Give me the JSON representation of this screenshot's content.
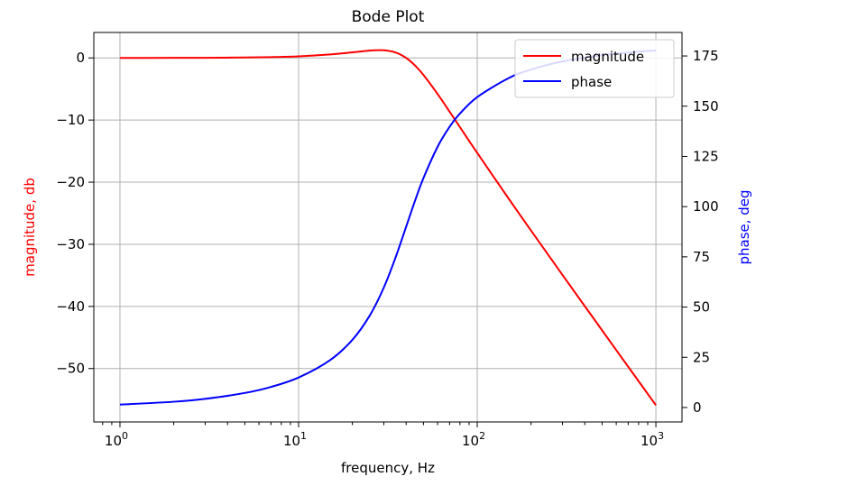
{
  "chart_data": {
    "type": "line",
    "title": "Bode Plot",
    "xlabel": "frequency, Hz",
    "ylabel_left": "magnitude, db",
    "ylabel_right": "phase, deg",
    "x_scale": "log",
    "xlim": [
      0.714,
      1400
    ],
    "ylim_left": [
      -58.6,
      4.1
    ],
    "ylim_right": [
      -7.2,
      186.7
    ],
    "x_ticks": [
      {
        "value": 1,
        "base": "10",
        "exp": "0"
      },
      {
        "value": 10,
        "base": "10",
        "exp": "1"
      },
      {
        "value": 100,
        "base": "10",
        "exp": "2"
      },
      {
        "value": 1000,
        "base": "10",
        "exp": "3"
      }
    ],
    "y_ticks_left": [
      0,
      -10,
      -20,
      -30,
      -40,
      -50
    ],
    "y_ticks_right": [
      0,
      25,
      50,
      75,
      100,
      125,
      150,
      175
    ],
    "grid": true,
    "legend_position": "top-right",
    "x": [
      1,
      2,
      3,
      5,
      7,
      10,
      15,
      20,
      25,
      30,
      35,
      40,
      45,
      50,
      60,
      70,
      80,
      100,
      150,
      200,
      300,
      500,
      700,
      1000
    ],
    "series": [
      {
        "name": "magnitude",
        "axis": "left",
        "color": "#ff0000",
        "values": [
          0.0,
          0.01,
          0.02,
          0.07,
          0.13,
          0.26,
          0.56,
          0.9,
          1.18,
          1.23,
          0.86,
          0.0,
          -1.26,
          -2.74,
          -5.81,
          -8.64,
          -11.14,
          -15.29,
          -22.66,
          -27.79,
          -34.93,
          -43.85,
          -49.71,
          -55.91
        ]
      },
      {
        "name": "phase",
        "axis": "right",
        "color": "#0000ff",
        "values": [
          1.43,
          2.87,
          4.31,
          7.24,
          10.23,
          14.93,
          23.58,
          33.69,
          45.73,
          59.74,
          75.0,
          90.0,
          103.29,
          114.23,
          129.81,
          139.69,
          146.31,
          154.54,
          163.98,
          168.23,
          172.27,
          175.4,
          176.72,
          177.71
        ]
      }
    ]
  }
}
